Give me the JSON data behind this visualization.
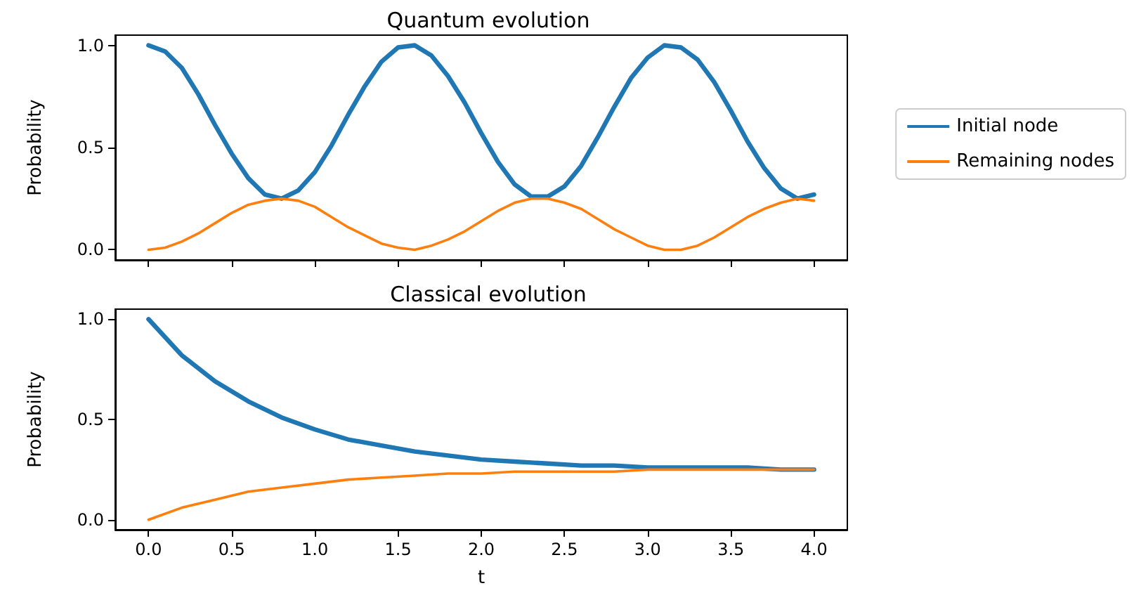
{
  "chart_data": [
    {
      "type": "line",
      "title": "Quantum evolution",
      "ylabel": "Probability",
      "x": [
        0,
        0.1,
        0.2,
        0.3,
        0.4,
        0.5,
        0.6,
        0.7,
        0.8,
        0.9,
        1.0,
        1.1,
        1.2,
        1.3,
        1.4,
        1.5,
        1.6,
        1.7,
        1.8,
        1.9,
        2.0,
        2.1,
        2.2,
        2.3,
        2.4,
        2.5,
        2.6,
        2.7,
        2.8,
        2.9,
        3.0,
        3.1,
        3.2,
        3.3,
        3.4,
        3.5,
        3.6,
        3.7,
        3.8,
        3.9,
        4.0
      ],
      "series": [
        {
          "name": "Initial node",
          "color": "#1f77b4",
          "values": [
            1.0,
            0.97,
            0.89,
            0.76,
            0.61,
            0.47,
            0.35,
            0.27,
            0.25,
            0.29,
            0.38,
            0.51,
            0.66,
            0.8,
            0.92,
            0.99,
            1.0,
            0.95,
            0.85,
            0.72,
            0.57,
            0.43,
            0.32,
            0.26,
            0.26,
            0.31,
            0.41,
            0.55,
            0.7,
            0.84,
            0.94,
            1.0,
            0.99,
            0.93,
            0.82,
            0.68,
            0.53,
            0.4,
            0.3,
            0.25,
            0.27
          ]
        },
        {
          "name": "Remaining nodes",
          "color": "#ff7f0e",
          "values": [
            0.0,
            0.01,
            0.04,
            0.08,
            0.13,
            0.18,
            0.22,
            0.24,
            0.25,
            0.24,
            0.21,
            0.16,
            0.11,
            0.07,
            0.03,
            0.01,
            0.0,
            0.02,
            0.05,
            0.09,
            0.14,
            0.19,
            0.23,
            0.25,
            0.25,
            0.23,
            0.2,
            0.15,
            0.1,
            0.06,
            0.02,
            0.0,
            0.0,
            0.02,
            0.06,
            0.11,
            0.16,
            0.2,
            0.23,
            0.25,
            0.24
          ]
        }
      ],
      "xlim": [
        -0.2,
        4.2
      ],
      "xticks": [
        0,
        0.5,
        1,
        1.5,
        2,
        2.5,
        3,
        3.5,
        4
      ],
      "ylim": [
        -0.05,
        1.05
      ],
      "yticks": [
        {
          "value": 0,
          "label": "0.0"
        },
        {
          "value": 0.5,
          "label": "0.5"
        },
        {
          "value": 1,
          "label": "1.0"
        }
      ],
      "tick_labels": "y",
      "legend": "right",
      "grid": false,
      "marker": "none",
      "line_style": "solid"
    },
    {
      "type": "line",
      "title": "Classical evolution",
      "ylabel": "Probability",
      "xlabel": "t",
      "x": [
        0,
        0.2,
        0.4,
        0.6,
        0.8,
        1.0,
        1.2,
        1.4,
        1.6,
        1.8,
        2.0,
        2.2,
        2.4,
        2.6,
        2.8,
        3.0,
        3.2,
        3.4,
        3.6,
        3.8,
        4.0
      ],
      "series": [
        {
          "color": "#1f77b4",
          "values": [
            1.0,
            0.82,
            0.69,
            0.59,
            0.51,
            0.45,
            0.4,
            0.37,
            0.34,
            0.32,
            0.3,
            0.29,
            0.28,
            0.27,
            0.27,
            0.26,
            0.26,
            0.26,
            0.26,
            0.25,
            0.25
          ]
        },
        {
          "color": "#ff7f0e",
          "values": [
            0.0,
            0.06,
            0.1,
            0.14,
            0.16,
            0.18,
            0.2,
            0.21,
            0.22,
            0.23,
            0.23,
            0.24,
            0.24,
            0.24,
            0.24,
            0.25,
            0.25,
            0.25,
            0.25,
            0.25,
            0.25
          ]
        }
      ],
      "xlim": [
        -0.2,
        4.2
      ],
      "xticks": [
        {
          "value": 0,
          "label": "0.0"
        },
        {
          "value": 0.5,
          "label": "0.5"
        },
        {
          "value": 1,
          "label": "1.0"
        },
        {
          "value": 1.5,
          "label": "1.5"
        },
        {
          "value": 2,
          "label": "2.0"
        },
        {
          "value": 2.5,
          "label": "2.5"
        },
        {
          "value": 3,
          "label": "3.0"
        },
        {
          "value": 3.5,
          "label": "3.5"
        },
        {
          "value": 4,
          "label": "4.0"
        }
      ],
      "ylim": [
        -0.05,
        1.05
      ],
      "yticks": [
        {
          "value": 0,
          "label": "0.0"
        },
        {
          "value": 0.5,
          "label": "0.5"
        },
        {
          "value": 1,
          "label": "1.0"
        }
      ],
      "legend": false,
      "grid": false,
      "marker": "none",
      "line_style": "solid"
    }
  ]
}
